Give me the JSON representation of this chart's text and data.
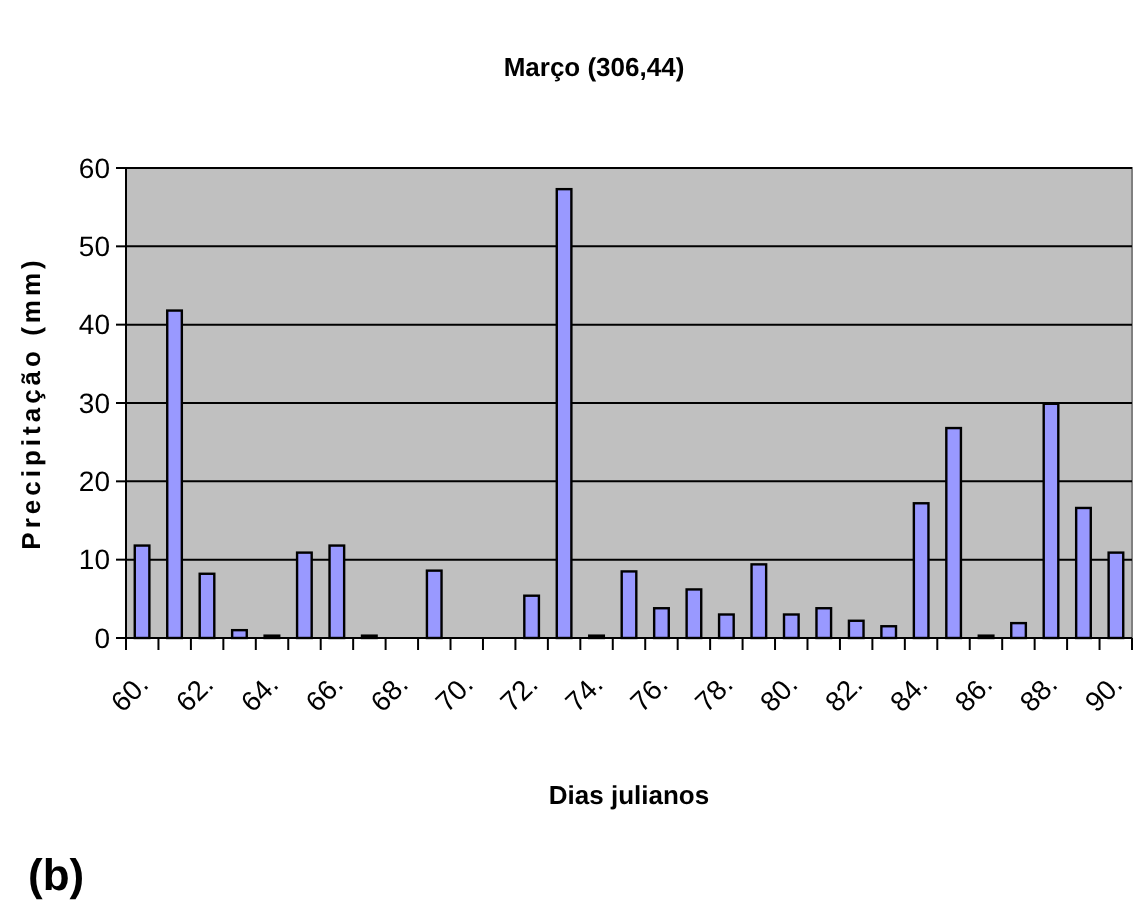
{
  "chart_data": {
    "type": "bar",
    "title": "Março (306,44)",
    "xlabel": "Dias julianos",
    "ylabel": "Precipitação (mm)",
    "categories": [
      "60.",
      null,
      "62.",
      null,
      "64.",
      null,
      "66.",
      null,
      "68.",
      null,
      "70.",
      null,
      "72.",
      null,
      "74.",
      null,
      "76.",
      null,
      "78.",
      null,
      "80.",
      null,
      "82.",
      null,
      "84.",
      null,
      "86.",
      null,
      "88.",
      null,
      "90."
    ],
    "values": [
      11.8,
      41.8,
      8.2,
      1.0,
      0.3,
      10.9,
      11.8,
      0.3,
      0,
      8.6,
      0,
      0,
      5.4,
      57.3,
      0.3,
      8.5,
      3.8,
      6.2,
      3.0,
      9.4,
      3.0,
      3.8,
      2.2,
      1.5,
      17.2,
      26.8,
      0.3,
      1.9,
      29.9,
      16.6,
      10.9
    ],
    "color": "#9999ff",
    "ylim": [
      0,
      60
    ],
    "yticks": [
      0,
      10,
      20,
      30,
      40,
      50,
      60
    ],
    "grid": "y",
    "annotations": [
      "(b)"
    ]
  }
}
